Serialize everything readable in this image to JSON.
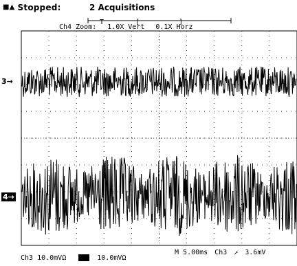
{
  "status": {
    "run_state": "Stopped:",
    "acquisitions": "2 Acquisitions"
  },
  "zoom": {
    "label": "Ch4 Zoom:",
    "vert": "1.0X Vert",
    "horz": "0.1X Horz"
  },
  "markers": {
    "ch3": "3→",
    "ch4": "4→"
  },
  "readouts": {
    "ch3_scale": "Ch3  10.0mVΩ",
    "ch4_scale": "10.0mVΩ",
    "timebase": "M 5.00ms",
    "trigger_source": "Ch3",
    "trigger_slope": "↗",
    "trigger_level": "3.6mV"
  },
  "icons": {
    "run": "run-state-icon"
  }
}
